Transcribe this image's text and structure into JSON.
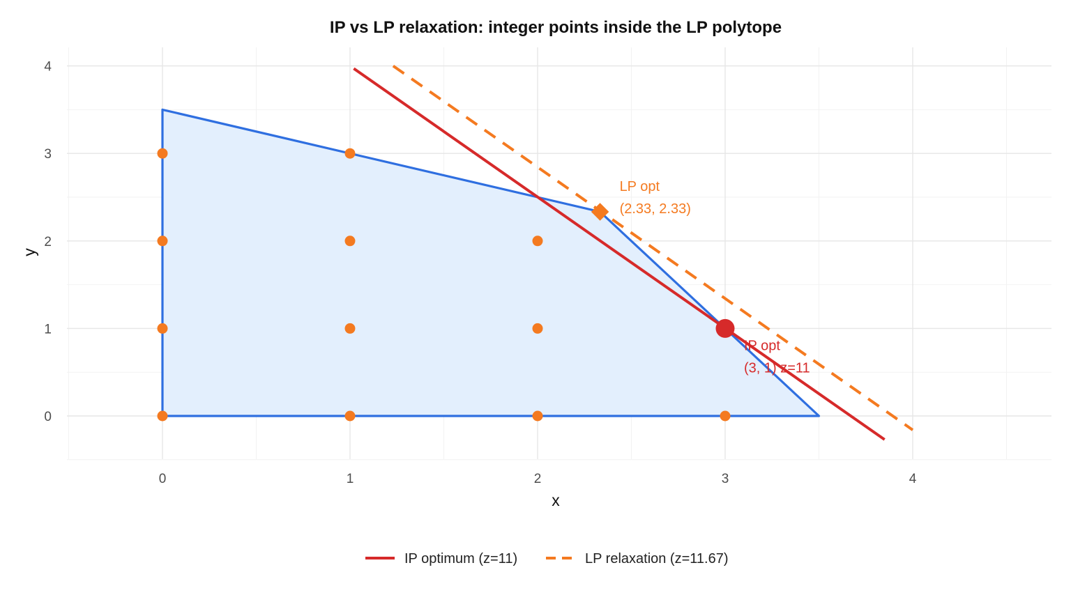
{
  "colors": {
    "panel_bg": "#ffffff",
    "grid_major": "#e6e6e6",
    "grid_minor": "#f2f2f2",
    "polytope_fill": "#e3effd",
    "polytope_edge": "#2f6fe0",
    "integer_point": "#f47a20",
    "ip_color": "#d62a2a",
    "lp_color": "#f47a20"
  },
  "chart_data": {
    "type": "scatter",
    "title": "IP vs LP relaxation: integer points inside the LP polytope",
    "xlabel": "x",
    "ylabel": "y",
    "xlim": [
      -0.5,
      4.75
    ],
    "ylim": [
      -0.5,
      4.2
    ],
    "xticks": [
      0,
      1,
      2,
      3,
      4
    ],
    "yticks": [
      0,
      1,
      2,
      3,
      4
    ],
    "grid": true,
    "polytope": [
      [
        0,
        0
      ],
      [
        0,
        3.5
      ],
      [
        2,
        2.5
      ],
      [
        2.333,
        2.333
      ],
      [
        3.5,
        0
      ]
    ],
    "integer_points": [
      [
        0,
        0
      ],
      [
        0,
        1
      ],
      [
        0,
        2
      ],
      [
        0,
        3
      ],
      [
        1,
        0
      ],
      [
        1,
        1
      ],
      [
        1,
        2
      ],
      [
        1,
        3
      ],
      [
        2,
        0
      ],
      [
        2,
        1
      ],
      [
        2,
        2
      ],
      [
        3,
        0
      ]
    ],
    "series": [
      {
        "name": "IP optimum (z=11)",
        "style": "solid",
        "color": "#d62a2a",
        "x": [
          1.02,
          3.85
        ],
        "y": [
          3.97,
          -0.27
        ]
      },
      {
        "name": "LP relaxation (z=11.67)",
        "style": "dashed",
        "color": "#f47a20",
        "x": [
          1.23,
          4.0
        ],
        "y": [
          4.0,
          -0.16
        ]
      }
    ],
    "optima": {
      "ip": {
        "x": 3,
        "y": 1,
        "label_line1": "IP opt",
        "label_line2": "(3, 1) z=11"
      },
      "lp": {
        "x": 2.333,
        "y": 2.333,
        "label_line1": "LP opt",
        "label_line2": "(2.33, 2.33)"
      }
    },
    "legend_position": "bottom"
  }
}
